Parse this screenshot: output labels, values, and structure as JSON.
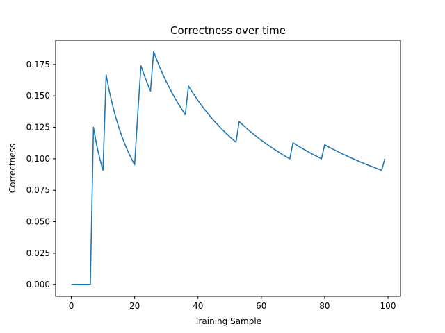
{
  "chart_data": {
    "type": "line",
    "title": "Correctness over time",
    "xlabel": "Training Sample",
    "ylabel": "Correctness",
    "xlim": [
      -4.95,
      103.95
    ],
    "ylim": [
      -0.00925,
      0.19425
    ],
    "xticks": [
      0,
      20,
      40,
      60,
      80,
      100
    ],
    "yticks": [
      0.0,
      0.025,
      0.05,
      0.075,
      0.1,
      0.125,
      0.15,
      0.175
    ],
    "ytick_labels": [
      "0.000",
      "0.025",
      "0.050",
      "0.075",
      "0.100",
      "0.125",
      "0.150",
      "0.175"
    ],
    "grid": false,
    "series": [
      {
        "color": "#1f77b4",
        "x": [
          0,
          1,
          2,
          3,
          4,
          5,
          6,
          7,
          8,
          9,
          10,
          11,
          12,
          13,
          14,
          15,
          16,
          17,
          18,
          19,
          20,
          21,
          22,
          23,
          24,
          25,
          26,
          27,
          28,
          29,
          30,
          31,
          32,
          33,
          34,
          35,
          36,
          37,
          38,
          39,
          40,
          41,
          42,
          43,
          44,
          45,
          46,
          47,
          48,
          49,
          50,
          51,
          52,
          53,
          54,
          55,
          56,
          57,
          58,
          59,
          60,
          61,
          62,
          63,
          64,
          65,
          66,
          67,
          68,
          69,
          70,
          71,
          72,
          73,
          74,
          75,
          76,
          77,
          78,
          79,
          80,
          81,
          82,
          83,
          84,
          85,
          86,
          87,
          88,
          89,
          90,
          91,
          92,
          93,
          94,
          95,
          96,
          97,
          98,
          99
        ],
        "y": [
          0,
          0,
          0,
          0,
          0,
          0,
          0,
          0.125,
          0.111,
          0.1,
          0.0909,
          0.1667,
          0.1538,
          0.1429,
          0.1333,
          0.125,
          0.1176,
          0.1111,
          0.1053,
          0.1,
          0.0952,
          0.1364,
          0.1739,
          0.1667,
          0.16,
          0.1538,
          0.1852,
          0.1786,
          0.1724,
          0.1667,
          0.1613,
          0.1563,
          0.1515,
          0.1471,
          0.1429,
          0.1389,
          0.1351,
          0.1579,
          0.1538,
          0.15,
          0.1463,
          0.1429,
          0.1395,
          0.1364,
          0.1333,
          0.1304,
          0.1277,
          0.125,
          0.1224,
          0.12,
          0.1176,
          0.1154,
          0.1132,
          0.1296,
          0.1273,
          0.125,
          0.1228,
          0.1207,
          0.1186,
          0.1167,
          0.1148,
          0.1129,
          0.1111,
          0.1094,
          0.1077,
          0.1061,
          0.1045,
          0.1029,
          0.1014,
          0.1,
          0.1127,
          0.1111,
          0.1096,
          0.1081,
          0.1067,
          0.1053,
          0.1039,
          0.1026,
          0.1013,
          0.1,
          0.1111,
          0.1098,
          0.1084,
          0.1071,
          0.1059,
          0.1047,
          0.1034,
          0.1023,
          0.1011,
          0.1,
          0.0989,
          0.0978,
          0.0968,
          0.0957,
          0.0947,
          0.0938,
          0.0928,
          0.0918,
          0.0909,
          0.1
        ]
      }
    ]
  }
}
